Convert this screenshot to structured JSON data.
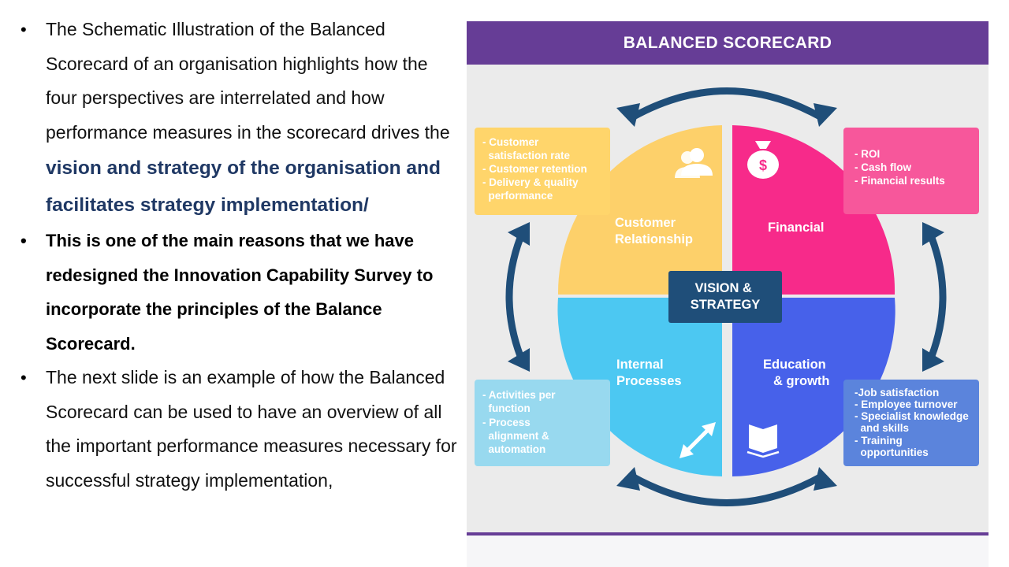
{
  "bullets": {
    "b1_text": "The Schematic Illustration of the  Balanced Scorecard of an organisation highlights how the four perspectives are interrelated and how performance measures in the scorecard drives the ",
    "b1_highlight": "vision and strategy of the organisation and facilitates strategy implementation/",
    "b2": "This is one of the main reasons that we have redesigned the Innovation Capability Survey to incorporate the principles of the Balance Scorecard.",
    "b3": "The next slide is an example of how the Balanced Scorecard can be used to have an overview of all the important performance measures necessary for successful strategy implementation,",
    "marker": "•"
  },
  "diagram": {
    "title": "BALANCED SCORECARD",
    "center": [
      "VISION &",
      "STRATEGY"
    ],
    "quadrants": {
      "customer": {
        "label": [
          "Customer",
          "Relationship"
        ],
        "color": "#fdd06a",
        "icon": "users-icon"
      },
      "financial": {
        "label": [
          "Financial"
        ],
        "color": "#f72a8a",
        "icon": "money-bag-icon",
        "icon_symbol": "$"
      },
      "internal": {
        "label": [
          "Internal",
          "Processes"
        ],
        "color": "#4cc8f2",
        "icon": "expand-arrows-icon"
      },
      "education": {
        "label": [
          "Education",
          "& growth"
        ],
        "color": "#4761ea",
        "icon": "open-book-icon"
      }
    },
    "boxes": {
      "customer": [
        "- Customer",
        "  satisfaction rate",
        "- Customer retention",
        "- Delivery & quality",
        "  performance"
      ],
      "financial": [
        "- ROI",
        "- Cash flow",
        "- Financial results"
      ],
      "internal": [
        "- Activities per",
        "  function",
        "- Process",
        "  alignment &",
        "  automation"
      ],
      "education": [
        "-Job satisfaction",
        "- Employee turnover",
        "- Specialist knowledge",
        "  and skills",
        "- Training",
        "  opportunities"
      ]
    },
    "colors": {
      "header": "#663d96",
      "panel_bg": "#ebebeb",
      "arrow": "#1f4e79",
      "vision_box": "#1f4e79",
      "box_customer": "#ffd56b",
      "box_financial": "#f7579b",
      "box_internal": "#98d9ef",
      "box_education": "#5b84dc"
    }
  }
}
